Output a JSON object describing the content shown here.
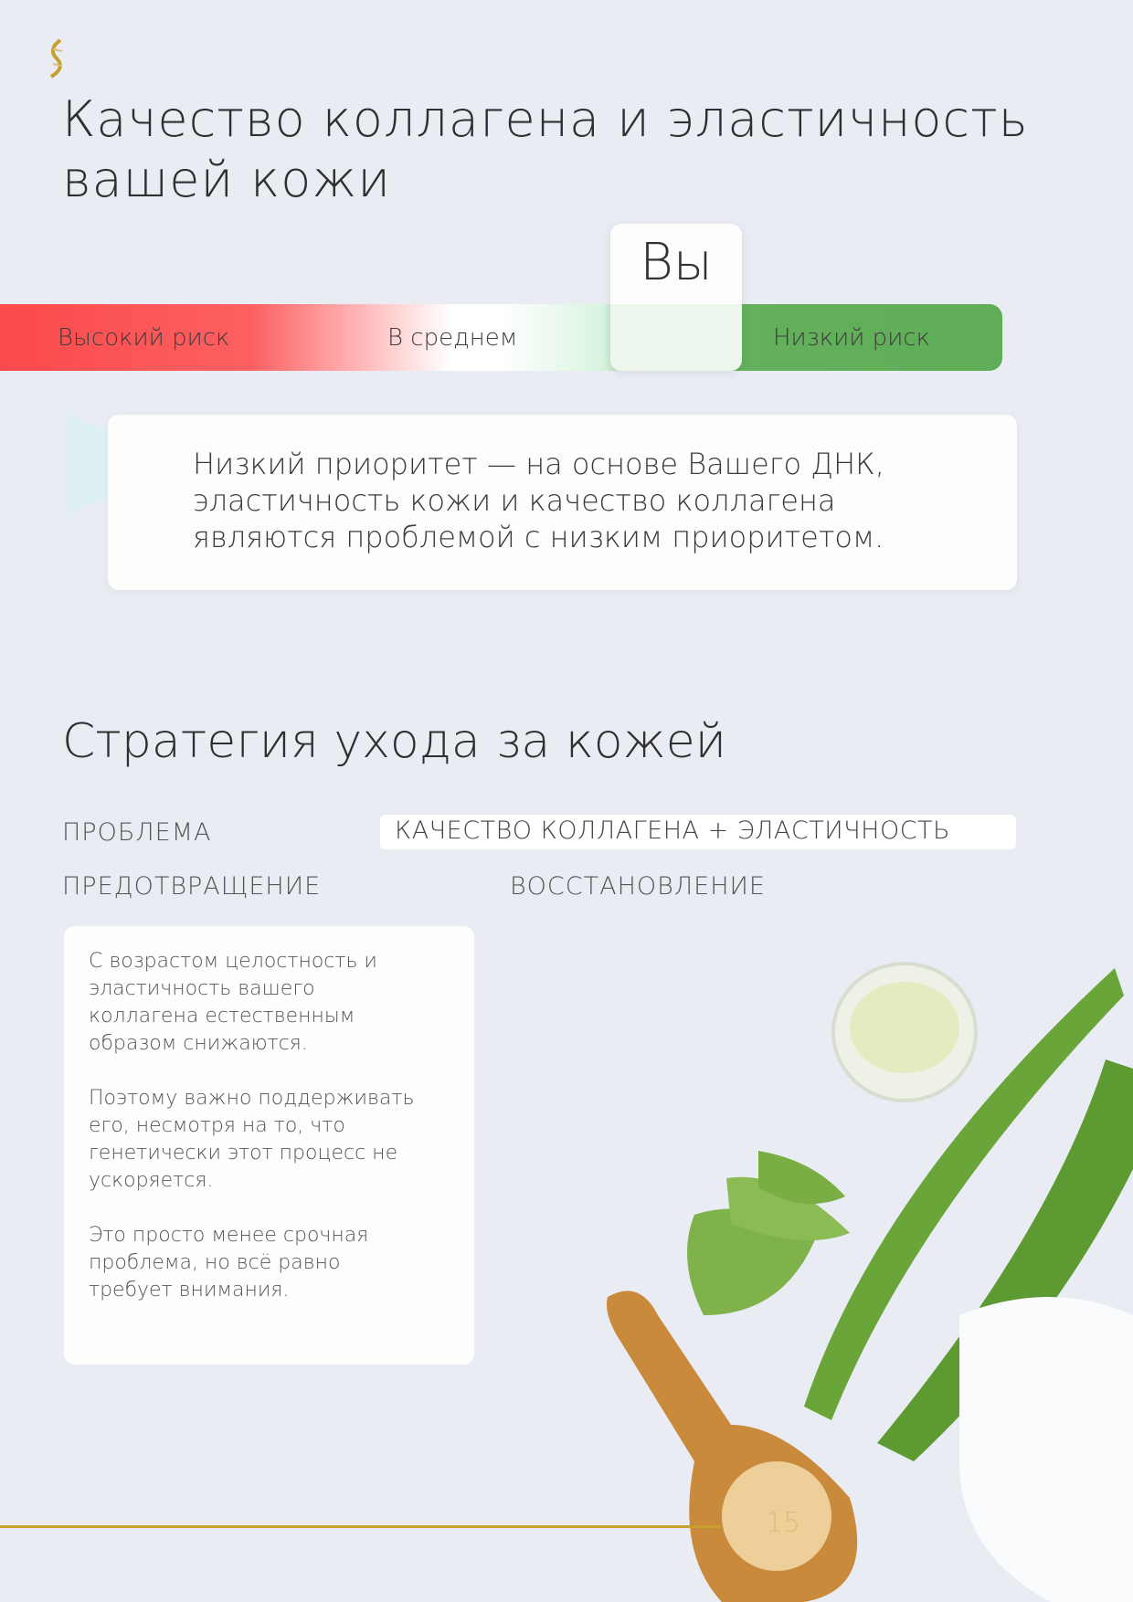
{
  "title": "Качество коллагена и эластичность вашей кожи",
  "risk_scale": {
    "you_label": "Вы",
    "high": "Высокий риск",
    "average": "В среднем",
    "low": "Низкий риск",
    "you_position": "low-risk",
    "colors": {
      "high": "#fb4a4c",
      "low": "#5fae57"
    }
  },
  "note": "Низкий приоритет — на основе Вашего ДНК, эластичность кожи и качество коллагена являются проблемой с низким приоритетом.",
  "strategy": {
    "title": "Стратегия ухода за кожей",
    "problem_label": "ПРОБЛЕМА",
    "problem_value": "КАЧЕСТВО КОЛЛАГЕНА + ЭЛАСТИЧНОСТЬ",
    "prevention_label": "ПРЕДОТВРАЩЕНИЕ",
    "recovery_label": "ВОССТАНОВЛЕНИЕ",
    "prevention_paragraphs": [
      "С возрастом целостность и эластичность вашего коллагена естественным образом снижаются.",
      "Поэтому важно поддерживать его, несмотря на то, что генетически этот процесс не ускоряется.",
      "Это просто менее срочная проблема, но всё равно требует внимания."
    ]
  },
  "page_number": "15"
}
